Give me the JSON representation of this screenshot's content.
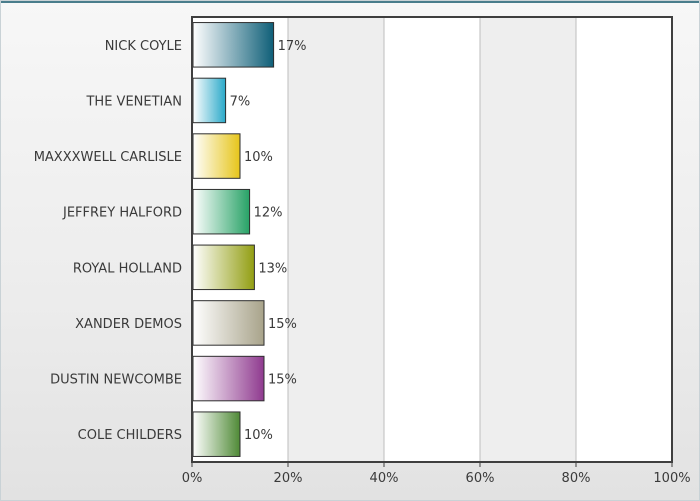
{
  "chart_data": {
    "type": "bar",
    "orientation": "horizontal",
    "categories": [
      "NICK COYLE",
      "THE VENETIAN",
      "MAXXXWELL CARLISLE",
      "JEFFREY HALFORD",
      "ROYAL HOLLAND",
      "XANDER DEMOS",
      "DUSTIN NEWCOMBE",
      "COLE CHILDERS"
    ],
    "values": [
      17,
      7,
      10,
      12,
      13,
      15,
      15,
      10
    ],
    "value_labels": [
      "17%",
      "7%",
      "10%",
      "12%",
      "13%",
      "15%",
      "15%",
      "10%"
    ],
    "xlim": [
      0,
      100
    ],
    "x_ticks": [
      "0%",
      "20%",
      "40%",
      "60%",
      "80%",
      "100%"
    ],
    "grid": true,
    "bar_colors": [
      "#0f5f78",
      "#2aa9c9",
      "#e6c51a",
      "#27a266",
      "#929e12",
      "#a8a38a",
      "#8f3a8f",
      "#4f8a36"
    ]
  }
}
